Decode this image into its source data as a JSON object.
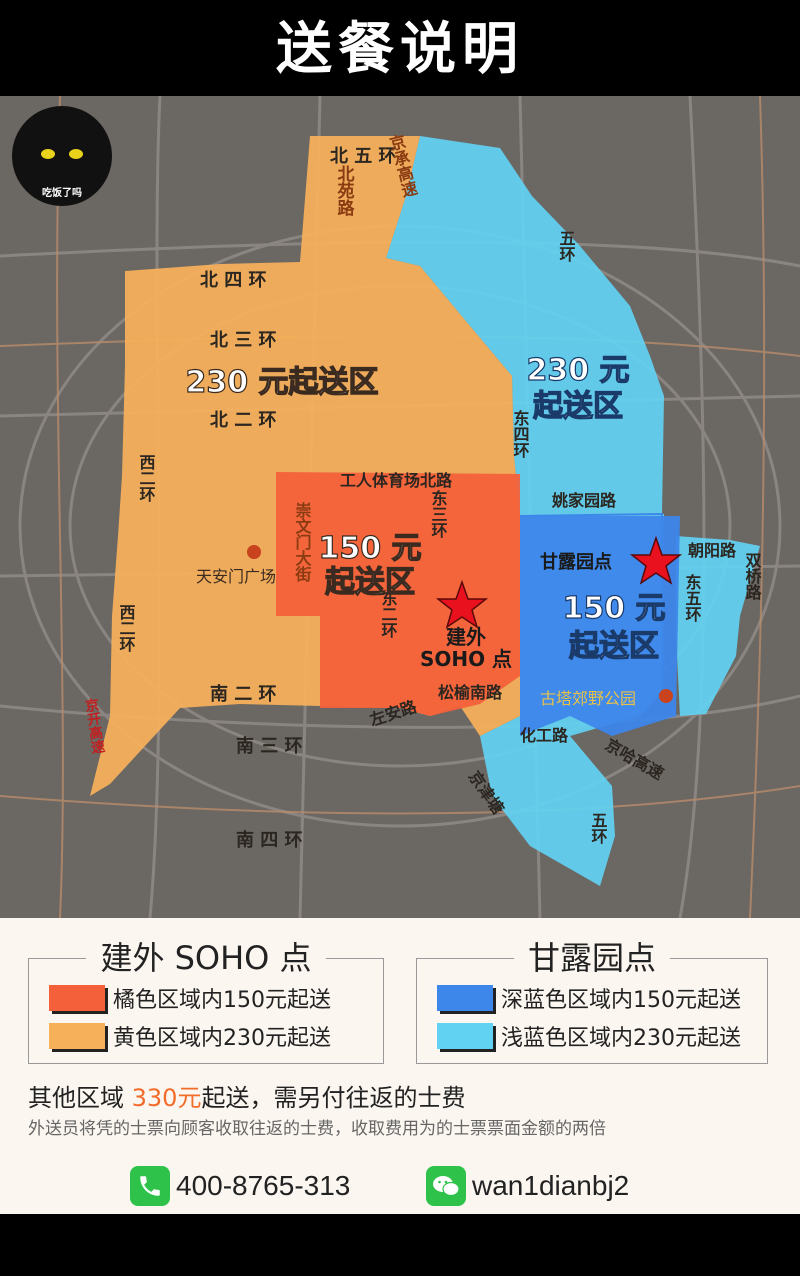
{
  "header": {
    "title": "送餐说明"
  },
  "map": {
    "roads": {
      "bei_wu_huan": "北 五 环",
      "bei_yuan_lu": "北苑路",
      "jing_cheng_gao_su": "京承高速",
      "bei_si_huan": "北 四 环",
      "bei_san_huan": "北 三 环",
      "bei_er_huan": "北 二 环",
      "xi_er_huan_upper": "西二环",
      "xi_er_huan_lower": "西二环",
      "gongren_tiyuchang": "工人体育场北路",
      "dong_san_huan": "东三环",
      "dong_er_huan": "东二环",
      "dong_si_huan": "东四环",
      "yaojiayuan_lu": "姚家园路",
      "wu_huan_upper": "五环",
      "wu_huan_lower": "五环",
      "chaoyang_lu": "朝阳路",
      "dong_wu_huan": "东五环",
      "shuangqiao_lu": "双桥路",
      "chongwenmen_dajie": "崇文门大街",
      "songyu_nanlu": "松榆南路",
      "nan_er_huan": "南 二 环",
      "zuoan_lu": "左安路",
      "nan_san_huan": "南 三 环",
      "nan_si_huan": "南 四 环",
      "jing_kai_gao_su": "京开高速",
      "huagong_lu": "化工路",
      "jingha_gao_su": "京哈高速",
      "jingjin_gao_su": "京津塘"
    },
    "zones": {
      "yellow_line1": "230 元起送区",
      "red_line1": "150 元",
      "red_line2": "起送区",
      "cyan_line1": "230 元",
      "cyan_line2": "起送区",
      "blue_line1": "150 元",
      "blue_line2": "起送区"
    },
    "points": {
      "jianwai_line1": "建外",
      "jianwai_line2": "SOHO 点",
      "ganluyuan": "甘露园点",
      "tiananmen": "天安门广场",
      "guta_park": "古塔郊野公园"
    },
    "logo_text": "吃饭了吗"
  },
  "legend": {
    "jianwai": {
      "title": "建外 SOHO 点",
      "rows": [
        "橘色区域内150元起送",
        "黄色区域内230元起送"
      ]
    },
    "ganluyuan": {
      "title": "甘露园点",
      "rows": [
        "深蓝色区域内150元起送",
        "浅蓝色区域内230元起送"
      ]
    },
    "other_prefix": "其他区域 ",
    "other_price": "330元",
    "other_suffix": "起送，需另付往返的士费",
    "taxi_note": "外送员将凭的士票向顾客收取往返的士费，收取费用为的士票票面金额的两倍",
    "phone": "400-8765-313",
    "wechat": "wan1dianbj2"
  },
  "colors": {
    "orange_zone": "#f4603a",
    "yellow_zone": "#f7b05a",
    "deep_blue_zone": "#3d86ea",
    "light_blue_zone": "#62d2f2",
    "accent": "#f26c2a",
    "star": "#e8111d"
  }
}
